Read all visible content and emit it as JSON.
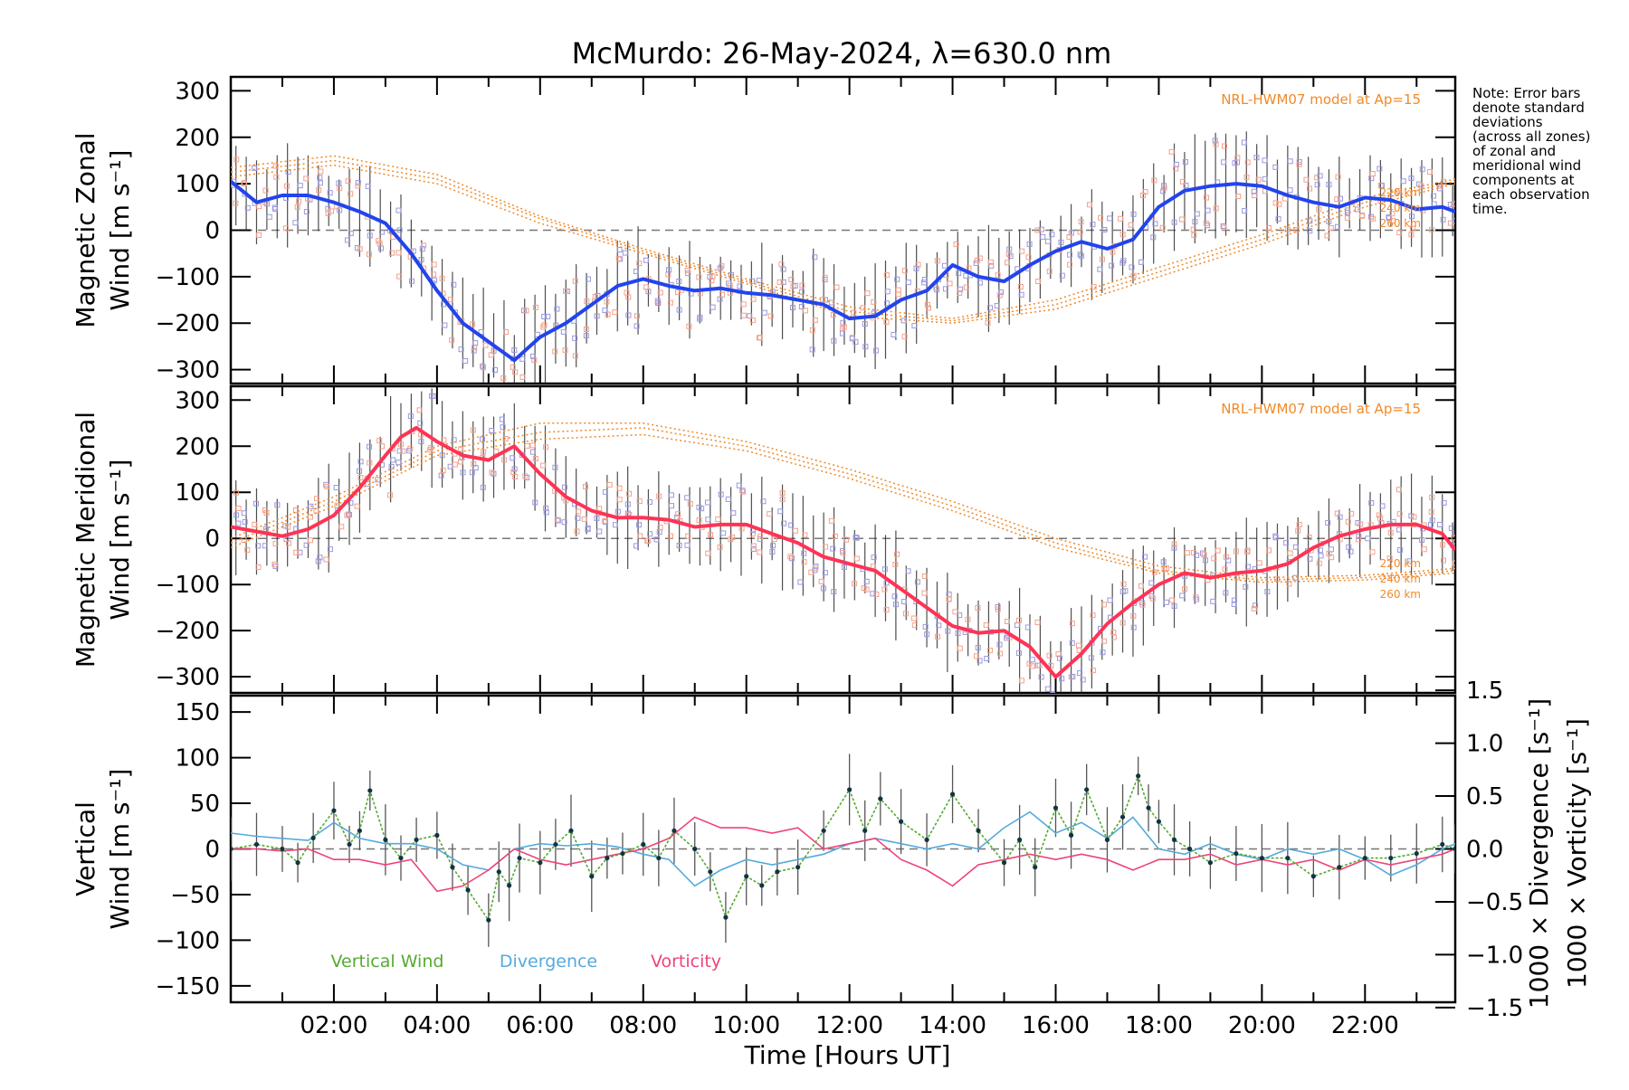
{
  "chart_data": [
    {
      "type": "line",
      "title": "McMurdo: 26-May-2024, λ=630.0 nm",
      "ylabel_line1": "Magnetic Zonal",
      "ylabel_line2": "Wind [m s⁻¹]",
      "xlim": [
        0,
        23.75
      ],
      "ylim": [
        -330,
        330
      ],
      "yticks": [
        300,
        200,
        100,
        0,
        -100,
        -200,
        -300
      ],
      "ytick_labels": [
        "300",
        "200",
        "100",
        "0",
        "−100",
        "−200",
        "−300"
      ],
      "model_label": "NRL-HWM07 model at Ap=15",
      "altitude_labels": [
        "220 km",
        "240 km",
        "260 km"
      ],
      "series": [
        {
          "name": "Magnetic Zonal Wind",
          "color": "#2244ee",
          "x": [
            0,
            0.5,
            1,
            1.5,
            2,
            2.5,
            3,
            3.5,
            4,
            4.5,
            5,
            5.5,
            6,
            6.5,
            7,
            7.5,
            8,
            8.5,
            9,
            9.5,
            10,
            10.5,
            11,
            11.5,
            12,
            12.5,
            13,
            13.5,
            14,
            14.5,
            15,
            15.5,
            16,
            16.5,
            17,
            17.5,
            18,
            18.5,
            19,
            19.5,
            20,
            20.5,
            21,
            21.5,
            22,
            22.5,
            23,
            23.5,
            23.75
          ],
          "values": [
            105,
            60,
            75,
            75,
            60,
            40,
            15,
            -50,
            -130,
            -200,
            -240,
            -280,
            -230,
            -200,
            -160,
            -120,
            -105,
            -120,
            -130,
            -125,
            -135,
            -140,
            -150,
            -160,
            -190,
            -185,
            -150,
            -130,
            -75,
            -100,
            -110,
            -75,
            -45,
            -25,
            -40,
            -20,
            50,
            85,
            95,
            100,
            95,
            75,
            60,
            50,
            70,
            65,
            45,
            50,
            40
          ]
        }
      ],
      "model_curves": [
        {
          "name": "220 km",
          "x": [
            0,
            2,
            4,
            6,
            8,
            10,
            12,
            14,
            16,
            18,
            20,
            22,
            23.75
          ],
          "values": [
            135,
            160,
            120,
            30,
            -40,
            -105,
            -165,
            -190,
            -150,
            -80,
            -10,
            70,
            110
          ]
        },
        {
          "name": "240 km",
          "x": [
            0,
            2,
            4,
            6,
            8,
            10,
            12,
            14,
            16,
            18,
            20,
            22,
            23.75
          ],
          "values": [
            125,
            150,
            110,
            25,
            -45,
            -110,
            -175,
            -195,
            -160,
            -90,
            -20,
            60,
            105
          ]
        },
        {
          "name": "260 km",
          "x": [
            0,
            2,
            4,
            6,
            8,
            10,
            12,
            14,
            16,
            18,
            20,
            22,
            23.75
          ],
          "values": [
            115,
            140,
            100,
            15,
            -50,
            -115,
            -185,
            -200,
            -170,
            -100,
            -30,
            50,
            100
          ]
        }
      ]
    },
    {
      "type": "line",
      "ylabel_line1": "Magnetic Meridional",
      "ylabel_line2": "Wind [m s⁻¹]",
      "xlim": [
        0,
        23.75
      ],
      "ylim": [
        -335,
        330
      ],
      "yticks": [
        300,
        200,
        100,
        0,
        -100,
        -200,
        -300
      ],
      "ytick_labels": [
        "300",
        "200",
        "100",
        "0",
        "−100",
        "−200",
        "−300"
      ],
      "model_label": "NRL-HWM07 model at Ap=15",
      "altitude_labels": [
        "220 km",
        "240 km",
        "260 km"
      ],
      "series": [
        {
          "name": "Magnetic Meridional Wind",
          "color": "#ff3355",
          "x": [
            0,
            0.5,
            1,
            1.5,
            2,
            2.5,
            3,
            3.3,
            3.6,
            4,
            4.5,
            5,
            5.5,
            6,
            6.5,
            7,
            7.5,
            8,
            8.5,
            9,
            9.5,
            10,
            10.5,
            11,
            11.5,
            12,
            12.5,
            13,
            13.5,
            14,
            14.5,
            15,
            15.5,
            16,
            16.5,
            17,
            17.5,
            18,
            18.5,
            19,
            19.5,
            20,
            20.5,
            21,
            21.5,
            22,
            22.5,
            23,
            23.5,
            23.75
          ],
          "values": [
            25,
            15,
            5,
            20,
            50,
            110,
            180,
            220,
            240,
            210,
            180,
            170,
            200,
            140,
            90,
            60,
            45,
            45,
            40,
            25,
            30,
            30,
            10,
            -10,
            -40,
            -55,
            -70,
            -110,
            -150,
            -190,
            -205,
            -200,
            -235,
            -300,
            -250,
            -185,
            -140,
            -100,
            -75,
            -85,
            -75,
            -70,
            -55,
            -20,
            5,
            20,
            30,
            30,
            10,
            -25
          ]
        }
      ],
      "model_curves": [
        {
          "name": "220 km",
          "x": [
            0,
            2,
            4,
            6,
            8,
            10,
            12,
            14,
            16,
            18,
            20,
            22,
            23.75
          ],
          "values": [
            0,
            90,
            200,
            250,
            250,
            210,
            150,
            80,
            0,
            -60,
            -85,
            -80,
            -65
          ]
        },
        {
          "name": "240 km",
          "x": [
            0,
            2,
            4,
            6,
            8,
            10,
            12,
            14,
            16,
            18,
            20,
            22,
            23.75
          ],
          "values": [
            -10,
            80,
            190,
            230,
            240,
            200,
            140,
            70,
            -10,
            -70,
            -90,
            -85,
            -70
          ]
        },
        {
          "name": "260 km",
          "x": [
            0,
            2,
            4,
            6,
            8,
            10,
            12,
            14,
            16,
            18,
            20,
            22,
            23.75
          ],
          "values": [
            -20,
            70,
            180,
            215,
            225,
            190,
            130,
            60,
            -20,
            -75,
            -95,
            -90,
            -75
          ]
        }
      ]
    },
    {
      "type": "line",
      "xlabel": "Time [Hours UT]",
      "xlim": [
        0,
        23.75
      ],
      "xticks": [
        2,
        4,
        6,
        8,
        10,
        12,
        14,
        16,
        18,
        20,
        22
      ],
      "xtick_labels": [
        "02:00",
        "04:00",
        "06:00",
        "08:00",
        "10:00",
        "12:00",
        "14:00",
        "16:00",
        "18:00",
        "20:00",
        "22:00"
      ],
      "ylabel_left_line1": "Vertical",
      "ylabel_left_line2": "Wind [m s⁻¹]",
      "ylim_left": [
        -168,
        168
      ],
      "yticks_left": [
        150,
        100,
        50,
        0,
        -50,
        -100,
        -150
      ],
      "ytick_labels_left": [
        "150",
        "100",
        "50",
        "0",
        "−50",
        "−100",
        "−150"
      ],
      "ylabel_right_divergence": "1000 × Divergence [s⁻¹]",
      "ylabel_right_vorticity": "1000 × Vorticity [s⁻¹]",
      "ylim_right": [
        -1.45,
        1.45
      ],
      "yticks_right": [
        1.5,
        1.0,
        0.5,
        0.0,
        -0.5,
        -1.0,
        -1.5
      ],
      "ytick_labels_right": [
        "1.5",
        "1.0",
        "0.5",
        "0.0",
        "−0.5",
        "−1.0",
        "−1.5"
      ],
      "legend": [
        "Vertical Wind",
        "Divergence",
        "Vorticity"
      ],
      "series": [
        {
          "name": "Vertical Wind",
          "color": "#55aa33",
          "x": [
            0,
            0.5,
            1,
            1.3,
            1.6,
            2,
            2.3,
            2.5,
            2.7,
            3,
            3.3,
            3.6,
            4,
            4.3,
            4.6,
            5,
            5.2,
            5.4,
            5.6,
            6,
            6.3,
            6.6,
            7,
            7.3,
            7.6,
            8,
            8.3,
            8.6,
            9,
            9.3,
            9.6,
            10,
            10.3,
            10.6,
            11,
            11.5,
            12,
            12.3,
            12.6,
            13,
            13.5,
            14,
            14.5,
            15,
            15.3,
            15.6,
            16,
            16.3,
            16.6,
            17,
            17.3,
            17.6,
            17.8,
            18,
            18.3,
            18.6,
            19,
            19.5,
            20,
            20.5,
            21,
            21.5,
            22,
            22.5,
            23,
            23.5,
            23.75
          ],
          "values": [
            0,
            5,
            0,
            -15,
            12,
            42,
            5,
            20,
            64,
            10,
            -10,
            10,
            15,
            -20,
            -45,
            -78,
            -25,
            -40,
            -10,
            -15,
            5,
            20,
            -30,
            -10,
            -5,
            5,
            -10,
            20,
            0,
            -25,
            -75,
            -30,
            -40,
            -25,
            -20,
            20,
            65,
            20,
            55,
            30,
            10,
            60,
            20,
            -15,
            10,
            -20,
            45,
            15,
            65,
            10,
            35,
            80,
            45,
            30,
            10,
            0,
            -15,
            -5,
            -10,
            -10,
            -30,
            -20,
            -10,
            -10,
            -5,
            5,
            0
          ]
        },
        {
          "name": "Divergence",
          "color": "#55aadd",
          "axis": "right",
          "x": [
            0,
            0.5,
            1,
            1.5,
            2,
            2.5,
            3,
            3.5,
            4,
            4.5,
            5,
            5.5,
            6,
            6.5,
            7,
            7.5,
            8,
            8.5,
            9,
            9.5,
            10,
            10.5,
            11,
            11.5,
            12,
            12.5,
            13,
            13.5,
            14,
            14.5,
            15,
            15.5,
            16,
            16.5,
            17,
            17.5,
            18,
            18.5,
            19,
            19.5,
            20,
            20.5,
            21,
            21.5,
            22,
            22.5,
            23,
            23.5,
            23.75
          ],
          "values": [
            0.15,
            0.12,
            0.1,
            0.08,
            0.25,
            0.1,
            0.05,
            0.05,
            0.0,
            -0.15,
            -0.2,
            0.0,
            0.05,
            0.03,
            0.05,
            0.02,
            -0.05,
            -0.1,
            -0.35,
            -0.2,
            -0.1,
            -0.15,
            -0.1,
            -0.05,
            0.05,
            0.1,
            0.05,
            0.0,
            0.05,
            0.0,
            0.2,
            0.35,
            0.15,
            0.25,
            0.1,
            0.3,
            0.0,
            -0.05,
            0.05,
            -0.05,
            -0.1,
            0.0,
            -0.05,
            0.0,
            -0.1,
            -0.25,
            -0.15,
            0.0,
            0.05
          ]
        },
        {
          "name": "Vorticity",
          "color": "#ee4477",
          "axis": "right",
          "x": [
            0,
            0.5,
            1,
            1.5,
            2,
            2.5,
            3,
            3.5,
            4,
            4.5,
            5,
            5.5,
            6,
            6.5,
            7,
            7.5,
            8,
            8.5,
            9,
            9.5,
            10,
            10.5,
            11,
            11.5,
            12,
            12.5,
            13,
            13.5,
            14,
            14.5,
            15,
            15.5,
            16,
            16.5,
            17,
            17.5,
            18,
            18.5,
            19,
            19.5,
            20,
            20.5,
            21,
            21.5,
            22,
            22.5,
            23,
            23.5,
            23.75
          ],
          "values": [
            0.0,
            0.0,
            -0.02,
            0.0,
            -0.1,
            -0.1,
            -0.15,
            -0.1,
            -0.4,
            -0.35,
            -0.2,
            0.0,
            -0.1,
            -0.15,
            -0.1,
            -0.05,
            0.0,
            0.1,
            0.3,
            0.2,
            0.2,
            0.15,
            0.2,
            0.0,
            0.05,
            0.1,
            -0.1,
            -0.2,
            -0.35,
            -0.15,
            -0.1,
            -0.05,
            -0.1,
            -0.05,
            -0.1,
            -0.2,
            -0.1,
            -0.1,
            -0.05,
            -0.15,
            -0.1,
            -0.15,
            -0.1,
            -0.2,
            -0.1,
            -0.15,
            -0.1,
            -0.05,
            0.0
          ]
        }
      ]
    }
  ],
  "note": [
    "Note: Error bars",
    "denote standard",
    "deviations",
    "(across all zones)",
    "of zonal and",
    "meridional wind",
    "components at",
    "each observation",
    "time."
  ],
  "colors": {
    "zonal": "#2244ee",
    "meridional": "#ff3355",
    "model": "#f08a2a",
    "scatter": "#9999dd",
    "errbar": "#222222",
    "vertical": "#55aa33",
    "divergence": "#55aadd",
    "vorticity": "#ee4477"
  }
}
